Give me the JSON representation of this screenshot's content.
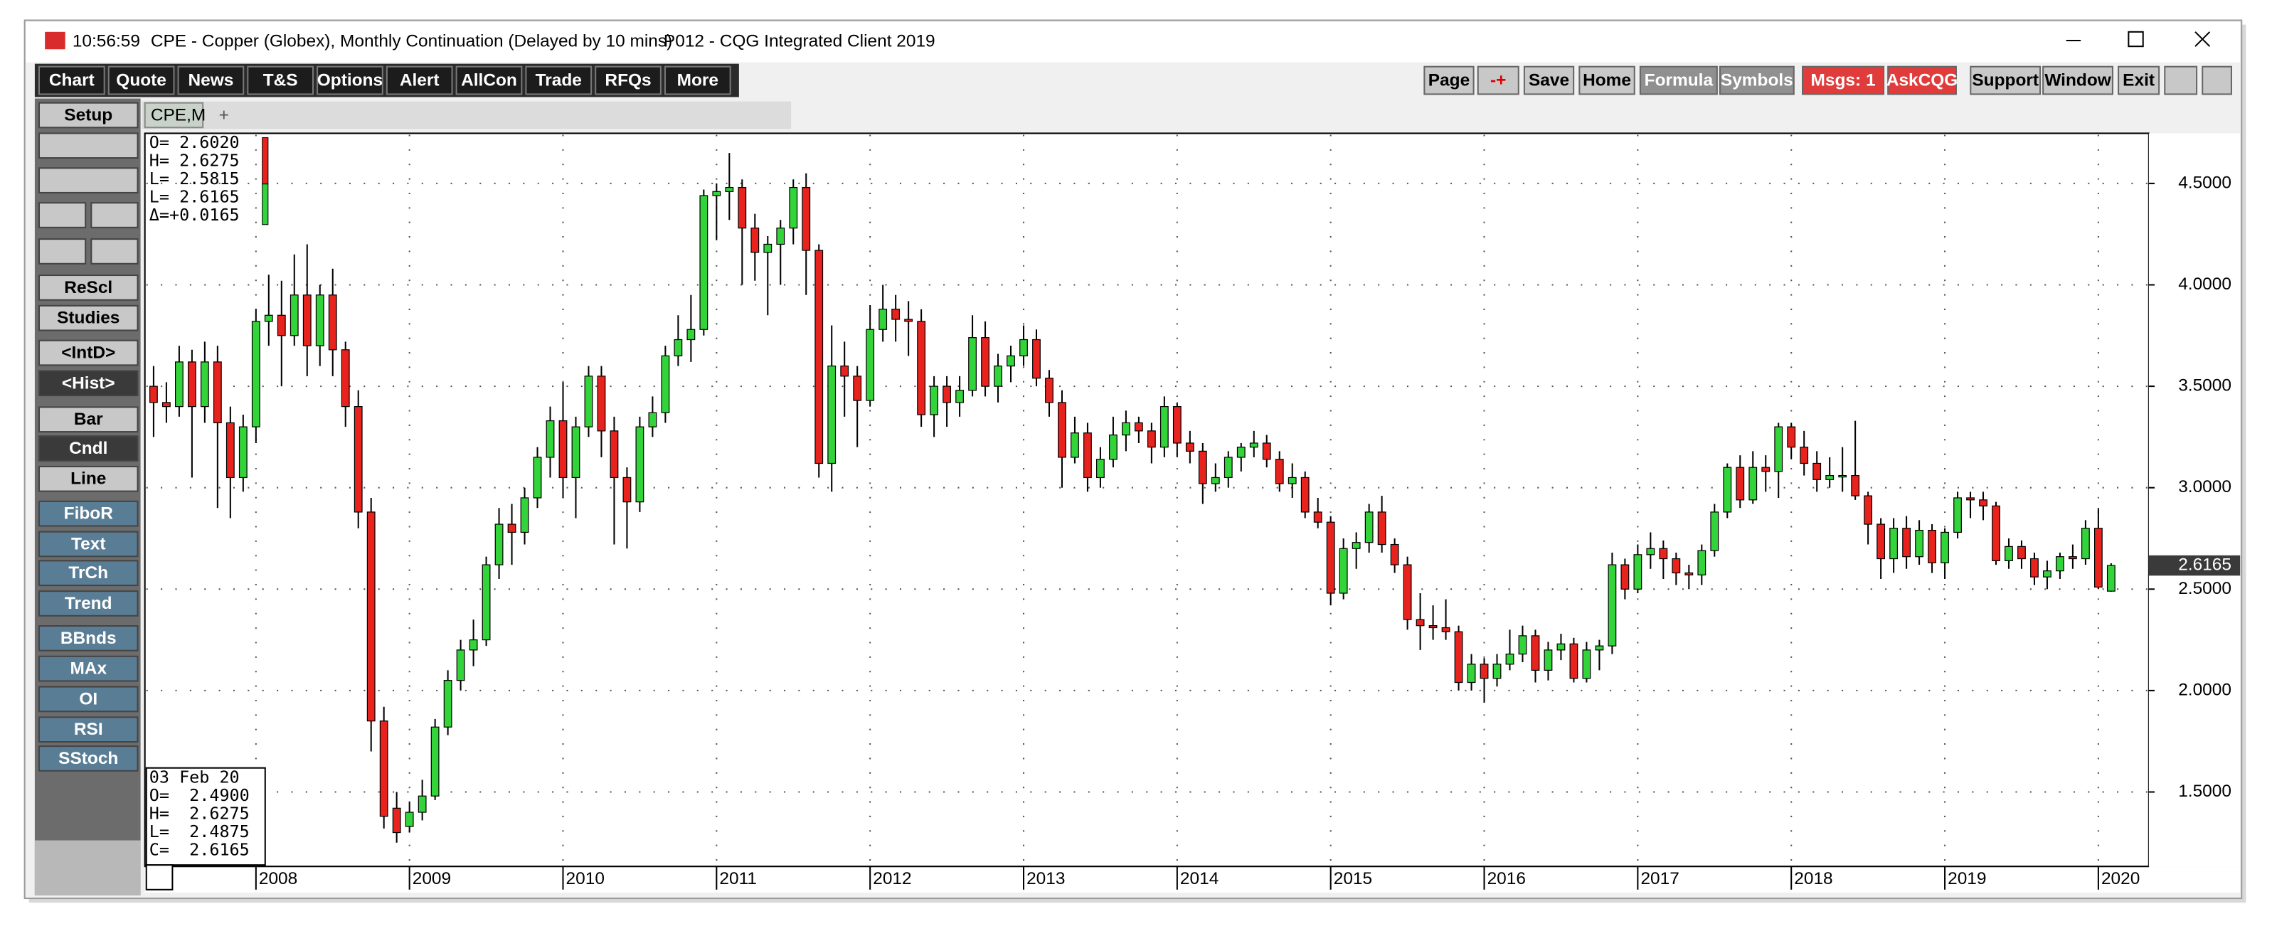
{
  "window": {
    "time": "10:56:59",
    "title": "CPE - Copper (Globex), Monthly Continuation (Delayed by 10 mins)",
    "client": "P012 - CQG Integrated Client 2019"
  },
  "toolbar_left": [
    "Chart",
    "Quote",
    "News",
    "T&S",
    "Options",
    "Alert",
    "AllCon",
    "Trade",
    "RFQs",
    "More"
  ],
  "toolbar_right": [
    "Page",
    "-+",
    "Save",
    "Home",
    "Formula",
    "Symbols",
    "Msgs: 1",
    "AskCQG",
    "Support",
    "Window",
    "Exit"
  ],
  "sidebar": [
    "Setup",
    "ReScl",
    "Studies",
    "<IntD>",
    "<Hist>",
    "Bar",
    "Cndl",
    "Line",
    "FiboR",
    "Text",
    "TrCh",
    "Trend",
    "BBnds",
    "MAx",
    "OI",
    "RSI",
    "SStoch"
  ],
  "tab": "CPE,M",
  "tab_add": "+",
  "chart_data": {
    "type": "candlestick",
    "up_color": "#33d43a",
    "down_color": "#e8231e",
    "categories": [
      null,
      null,
      null,
      null,
      null,
      null,
      null,
      null,
      "2008",
      null,
      null,
      null,
      null,
      null,
      null,
      null,
      null,
      null,
      null,
      null,
      "2009",
      null,
      null,
      null,
      null,
      null,
      null,
      null,
      null,
      null,
      null,
      null,
      "2010",
      null,
      null,
      null,
      null,
      null,
      null,
      null,
      null,
      null,
      null,
      null,
      "2011",
      null,
      null,
      null,
      null,
      null,
      null,
      null,
      null,
      null,
      null,
      null,
      "2012",
      null,
      null,
      null,
      null,
      null,
      null,
      null,
      null,
      null,
      null,
      null,
      "2013",
      null,
      null,
      null,
      null,
      null,
      null,
      null,
      null,
      null,
      null,
      null,
      "2014",
      null,
      null,
      null,
      null,
      null,
      null,
      null,
      null,
      null,
      null,
      null,
      "2015",
      null,
      null,
      null,
      null,
      null,
      null,
      null,
      null,
      null,
      null,
      null,
      "2016",
      null,
      null,
      null,
      null,
      null,
      null,
      null,
      null,
      null,
      null,
      null,
      "2017",
      null,
      null,
      null,
      null,
      null,
      null,
      null,
      null,
      null,
      null,
      null,
      "2018",
      null,
      null,
      null,
      null,
      null,
      null,
      null,
      null,
      null,
      null,
      null,
      "2019",
      null,
      null,
      null,
      null,
      null,
      null,
      null,
      null,
      null,
      null,
      null,
      "2020",
      null
    ],
    "ohlc": [
      [
        3.5,
        3.6,
        3.25,
        3.42
      ],
      [
        3.42,
        3.52,
        3.32,
        3.4
      ],
      [
        3.4,
        3.7,
        3.35,
        3.62
      ],
      [
        3.62,
        3.68,
        3.05,
        3.4
      ],
      [
        3.4,
        3.72,
        3.32,
        3.62
      ],
      [
        3.62,
        3.7,
        2.9,
        3.32
      ],
      [
        3.32,
        3.4,
        2.85,
        3.05
      ],
      [
        3.05,
        3.36,
        2.98,
        3.3
      ],
      [
        3.3,
        3.88,
        3.22,
        3.82
      ],
      [
        3.82,
        4.05,
        3.7,
        3.85
      ],
      [
        3.85,
        4.02,
        3.5,
        3.75
      ],
      [
        3.75,
        4.15,
        3.7,
        3.95
      ],
      [
        3.95,
        4.2,
        3.55,
        3.7
      ],
      [
        3.7,
        4.0,
        3.6,
        3.95
      ],
      [
        3.95,
        4.08,
        3.55,
        3.68
      ],
      [
        3.68,
        3.72,
        3.3,
        3.4
      ],
      [
        3.4,
        3.48,
        2.8,
        2.88
      ],
      [
        2.88,
        2.95,
        1.7,
        1.85
      ],
      [
        1.85,
        1.92,
        1.32,
        1.38
      ],
      [
        1.42,
        1.5,
        1.25,
        1.3
      ],
      [
        1.33,
        1.45,
        1.3,
        1.4
      ],
      [
        1.4,
        1.56,
        1.36,
        1.48
      ],
      [
        1.48,
        1.86,
        1.46,
        1.82
      ],
      [
        1.82,
        2.1,
        1.78,
        2.05
      ],
      [
        2.05,
        2.25,
        2.0,
        2.2
      ],
      [
        2.2,
        2.35,
        2.12,
        2.25
      ],
      [
        2.25,
        2.66,
        2.22,
        2.62
      ],
      [
        2.62,
        2.9,
        2.55,
        2.82
      ],
      [
        2.82,
        2.92,
        2.62,
        2.78
      ],
      [
        2.78,
        3.0,
        2.72,
        2.95
      ],
      [
        2.95,
        3.2,
        2.9,
        3.15
      ],
      [
        3.15,
        3.4,
        3.05,
        3.33
      ],
      [
        3.33,
        3.52,
        2.95,
        3.05
      ],
      [
        3.05,
        3.35,
        2.85,
        3.3
      ],
      [
        3.3,
        3.6,
        3.25,
        3.55
      ],
      [
        3.55,
        3.6,
        3.15,
        3.28
      ],
      [
        3.28,
        3.35,
        2.72,
        3.05
      ],
      [
        3.05,
        3.1,
        2.7,
        2.93
      ],
      [
        2.93,
        3.35,
        2.88,
        3.3
      ],
      [
        3.3,
        3.45,
        3.25,
        3.37
      ],
      [
        3.37,
        3.7,
        3.32,
        3.65
      ],
      [
        3.65,
        3.85,
        3.6,
        3.73
      ],
      [
        3.73,
        3.95,
        3.62,
        3.78
      ],
      [
        3.78,
        4.47,
        3.75,
        4.44
      ],
      [
        4.44,
        4.5,
        4.22,
        4.46
      ],
      [
        4.46,
        4.65,
        4.32,
        4.48
      ],
      [
        4.48,
        4.52,
        4.0,
        4.28
      ],
      [
        4.28,
        4.35,
        4.02,
        4.16
      ],
      [
        4.16,
        4.24,
        3.85,
        4.2
      ],
      [
        4.2,
        4.32,
        4.0,
        4.28
      ],
      [
        4.28,
        4.52,
        4.2,
        4.48
      ],
      [
        4.48,
        4.55,
        3.95,
        4.17
      ],
      [
        4.17,
        4.2,
        3.05,
        3.12
      ],
      [
        3.12,
        3.8,
        2.98,
        3.6
      ],
      [
        3.6,
        3.72,
        3.35,
        3.55
      ],
      [
        3.55,
        3.6,
        3.2,
        3.43
      ],
      [
        3.43,
        3.9,
        3.4,
        3.78
      ],
      [
        3.78,
        4.0,
        3.72,
        3.88
      ],
      [
        3.88,
        3.95,
        3.72,
        3.83
      ],
      [
        3.83,
        3.92,
        3.65,
        3.82
      ],
      [
        3.82,
        3.88,
        3.3,
        3.36
      ],
      [
        3.36,
        3.55,
        3.25,
        3.5
      ],
      [
        3.5,
        3.55,
        3.3,
        3.42
      ],
      [
        3.42,
        3.55,
        3.35,
        3.48
      ],
      [
        3.48,
        3.85,
        3.45,
        3.74
      ],
      [
        3.74,
        3.82,
        3.45,
        3.5
      ],
      [
        3.5,
        3.66,
        3.42,
        3.6
      ],
      [
        3.6,
        3.7,
        3.52,
        3.65
      ],
      [
        3.65,
        3.8,
        3.6,
        3.73
      ],
      [
        3.73,
        3.78,
        3.5,
        3.54
      ],
      [
        3.54,
        3.58,
        3.35,
        3.42
      ],
      [
        3.42,
        3.48,
        3.0,
        3.15
      ],
      [
        3.15,
        3.35,
        3.12,
        3.27
      ],
      [
        3.27,
        3.32,
        2.98,
        3.05
      ],
      [
        3.05,
        3.2,
        3.0,
        3.14
      ],
      [
        3.14,
        3.35,
        3.1,
        3.26
      ],
      [
        3.26,
        3.38,
        3.18,
        3.32
      ],
      [
        3.32,
        3.35,
        3.22,
        3.28
      ],
      [
        3.28,
        3.32,
        3.12,
        3.2
      ],
      [
        3.2,
        3.45,
        3.15,
        3.4
      ],
      [
        3.4,
        3.42,
        3.15,
        3.22
      ],
      [
        3.22,
        3.28,
        3.12,
        3.18
      ],
      [
        3.18,
        3.22,
        2.92,
        3.02
      ],
      [
        3.02,
        3.12,
        2.98,
        3.05
      ],
      [
        3.05,
        3.18,
        3.0,
        3.15
      ],
      [
        3.15,
        3.22,
        3.08,
        3.2
      ],
      [
        3.2,
        3.28,
        3.15,
        3.22
      ],
      [
        3.22,
        3.26,
        3.1,
        3.14
      ],
      [
        3.14,
        3.18,
        2.98,
        3.02
      ],
      [
        3.02,
        3.12,
        2.95,
        3.05
      ],
      [
        3.05,
        3.08,
        2.85,
        2.88
      ],
      [
        2.88,
        2.95,
        2.8,
        2.83
      ],
      [
        2.83,
        2.86,
        2.42,
        2.48
      ],
      [
        2.48,
        2.75,
        2.45,
        2.7
      ],
      [
        2.7,
        2.78,
        2.6,
        2.73
      ],
      [
        2.73,
        2.92,
        2.68,
        2.88
      ],
      [
        2.88,
        2.96,
        2.68,
        2.72
      ],
      [
        2.72,
        2.75,
        2.58,
        2.62
      ],
      [
        2.62,
        2.66,
        2.3,
        2.35
      ],
      [
        2.35,
        2.48,
        2.2,
        2.32
      ],
      [
        2.32,
        2.42,
        2.25,
        2.31
      ],
      [
        2.31,
        2.45,
        2.25,
        2.29
      ],
      [
        2.29,
        2.32,
        2.0,
        2.04
      ],
      [
        2.04,
        2.18,
        2.0,
        2.13
      ],
      [
        2.13,
        2.16,
        1.94,
        2.06
      ],
      [
        2.06,
        2.18,
        2.02,
        2.13
      ],
      [
        2.13,
        2.3,
        2.1,
        2.18
      ],
      [
        2.18,
        2.32,
        2.14,
        2.27
      ],
      [
        2.27,
        2.3,
        2.04,
        2.1
      ],
      [
        2.1,
        2.24,
        2.05,
        2.2
      ],
      [
        2.2,
        2.28,
        2.15,
        2.23
      ],
      [
        2.23,
        2.26,
        2.04,
        2.06
      ],
      [
        2.06,
        2.24,
        2.04,
        2.2
      ],
      [
        2.2,
        2.25,
        2.1,
        2.22
      ],
      [
        2.22,
        2.68,
        2.18,
        2.62
      ],
      [
        2.62,
        2.65,
        2.45,
        2.5
      ],
      [
        2.5,
        2.72,
        2.48,
        2.67
      ],
      [
        2.67,
        2.78,
        2.6,
        2.7
      ],
      [
        2.7,
        2.74,
        2.55,
        2.65
      ],
      [
        2.65,
        2.68,
        2.52,
        2.58
      ],
      [
        2.58,
        2.62,
        2.5,
        2.57
      ],
      [
        2.57,
        2.72,
        2.52,
        2.69
      ],
      [
        2.69,
        2.92,
        2.66,
        2.88
      ],
      [
        2.88,
        3.12,
        2.85,
        3.1
      ],
      [
        3.1,
        3.16,
        2.9,
        2.94
      ],
      [
        2.94,
        3.18,
        2.92,
        3.1
      ],
      [
        3.1,
        3.16,
        2.98,
        3.08
      ],
      [
        3.08,
        3.32,
        2.95,
        3.3
      ],
      [
        3.3,
        3.32,
        3.14,
        3.2
      ],
      [
        3.2,
        3.28,
        3.06,
        3.12
      ],
      [
        3.12,
        3.18,
        2.98,
        3.04
      ],
      [
        3.04,
        3.15,
        3.0,
        3.06
      ],
      [
        3.06,
        3.2,
        2.98,
        3.06
      ],
      [
        3.06,
        3.33,
        2.94,
        2.96
      ],
      [
        2.96,
        2.98,
        2.72,
        2.82
      ],
      [
        2.82,
        2.85,
        2.55,
        2.65
      ],
      [
        2.65,
        2.85,
        2.58,
        2.8
      ],
      [
        2.8,
        2.86,
        2.6,
        2.66
      ],
      [
        2.66,
        2.84,
        2.62,
        2.79
      ],
      [
        2.79,
        2.82,
        2.58,
        2.63
      ],
      [
        2.63,
        2.8,
        2.55,
        2.78
      ],
      [
        2.78,
        2.98,
        2.75,
        2.95
      ],
      [
        2.95,
        2.98,
        2.85,
        2.94
      ],
      [
        2.94,
        2.98,
        2.84,
        2.91
      ],
      [
        2.91,
        2.93,
        2.62,
        2.64
      ],
      [
        2.64,
        2.75,
        2.6,
        2.71
      ],
      [
        2.71,
        2.74,
        2.6,
        2.65
      ],
      [
        2.65,
        2.68,
        2.52,
        2.56
      ],
      [
        2.56,
        2.64,
        2.5,
        2.59
      ],
      [
        2.59,
        2.68,
        2.55,
        2.66
      ],
      [
        2.66,
        2.72,
        2.6,
        2.65
      ],
      [
        2.65,
        2.84,
        2.62,
        2.8
      ],
      [
        2.8,
        2.9,
        2.5,
        2.51
      ],
      [
        2.49,
        2.6275,
        2.4875,
        2.6165
      ]
    ],
    "ylim": [
      1.14,
      4.74
    ],
    "yticks": [
      {
        "value": 1.5,
        "label": "1.5000"
      },
      {
        "value": 2,
        "label": "2.0000"
      },
      {
        "value": 2.5,
        "label": "2.5000"
      },
      {
        "value": 3,
        "label": "3.0000"
      },
      {
        "value": 3.5,
        "label": "3.5000"
      },
      {
        "value": 4,
        "label": "4.0000"
      },
      {
        "value": 4.5,
        "label": "4.5000"
      }
    ],
    "grid": true,
    "last_label": "2.6165",
    "info_top": [
      "O= 2.6020",
      "H= 2.6275",
      "L= 2.5815",
      "L= 2.6165",
      "Δ=+0.0165"
    ],
    "info_bottom": [
      "03 Feb 20",
      "O=  2.4900",
      "H=  2.6275",
      "L=  2.4875",
      "C=  2.6165"
    ]
  }
}
